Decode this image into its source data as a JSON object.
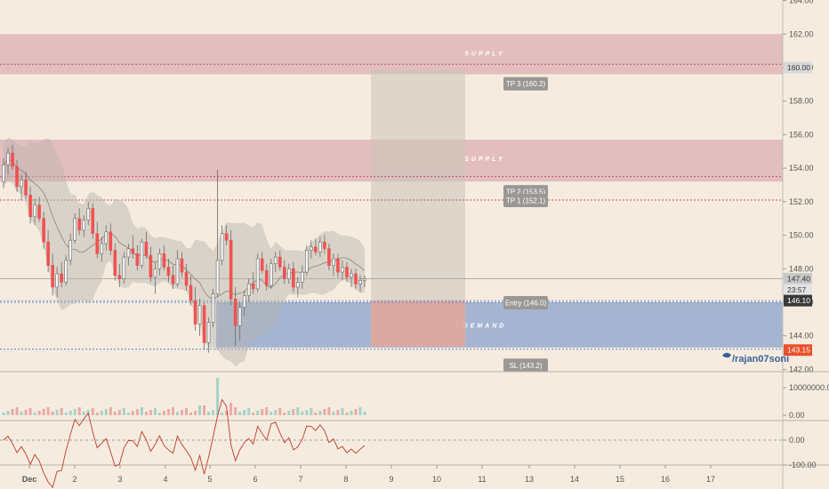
{
  "chart_data": {
    "type": "candlestick",
    "y_axis": {
      "range": [
        141.5,
        164.0
      ],
      "ticks": [
        "164.00",
        "162.00",
        "160.00",
        "158.00",
        "156.00",
        "154.00",
        "152.00",
        "150.00",
        "148.00",
        "146.00",
        "144.00",
        "142.00"
      ]
    },
    "x_axis": {
      "ticks": [
        "Dec",
        "2",
        "3",
        "4",
        "5",
        "6",
        "7",
        "8",
        "9",
        "10",
        "11",
        "13",
        "14",
        "15",
        "16",
        "17"
      ]
    },
    "zones": [
      {
        "name": "supply-zone-upper",
        "label": "SUPPLY",
        "from": 159.6,
        "to": 162.0,
        "color": "#d9a6ae"
      },
      {
        "name": "supply-zone-lower",
        "label": "SUPPLY",
        "from": 153.2,
        "to": 155.7,
        "color": "#d9a6ae"
      },
      {
        "name": "demand-zone",
        "label": "DEMAND",
        "from": 143.3,
        "to": 146.0,
        "color": "#8aa3cc"
      }
    ],
    "levels": [
      {
        "name": "tp3-level",
        "label": "TP 3 (160.2)",
        "value": 160.2,
        "color": "#c0506a"
      },
      {
        "name": "tp2-level",
        "label": "TP 2 (153.5)",
        "value": 153.5,
        "color": "#c0506a"
      },
      {
        "name": "tp1-level",
        "label": "TP 1 (152.1)",
        "value": 152.1,
        "color": "#c0506a"
      },
      {
        "name": "entry-level",
        "label": "Entry (146.0)",
        "value": 146.0,
        "color": "#5b7fc7"
      },
      {
        "name": "sl-level",
        "label": "SL (143.2)",
        "value": 143.2,
        "color": "#5b7fc7"
      }
    ],
    "price_badges": [
      {
        "name": "badge-tp3",
        "text": "160.00",
        "value": 160.0,
        "bg": "#d8d8d8",
        "fg": "#333333"
      },
      {
        "name": "badge-last",
        "text": "147.40",
        "value": 147.4,
        "bg": "#c8c8c8",
        "fg": "#333333"
      },
      {
        "name": "badge-timer",
        "text": "23:57",
        "value": 146.75,
        "bg": "#e3e3e3",
        "fg": "#333333"
      },
      {
        "name": "badge-entry",
        "text": "146.10",
        "value": 146.1,
        "bg": "#3a3a3a",
        "fg": "#ffffff"
      },
      {
        "name": "badge-sl",
        "text": "143.15",
        "value": 143.15,
        "bg": "#e8502a",
        "fg": "#ffffff"
      }
    ],
    "volume_axis": {
      "ticks": [
        "10000000.00",
        "0.00"
      ]
    },
    "oscillator_axis": {
      "ticks": [
        "0.00",
        "-100.00"
      ]
    },
    "watermark": "/rajan07soni",
    "ohlc": [
      [
        153.2,
        154.6,
        152.8,
        154.2
      ],
      [
        154.2,
        155.2,
        153.6,
        154.9
      ],
      [
        154.9,
        155.4,
        153.9,
        154.1
      ],
      [
        154.1,
        154.5,
        152.6,
        152.9
      ],
      [
        152.9,
        153.6,
        152.1,
        153.3
      ],
      [
        153.3,
        153.8,
        152.2,
        152.4
      ],
      [
        152.4,
        152.9,
        150.7,
        151.1
      ],
      [
        151.1,
        152.2,
        150.6,
        151.8
      ],
      [
        151.8,
        152.3,
        150.8,
        151.0
      ],
      [
        151.0,
        151.4,
        149.2,
        149.6
      ],
      [
        149.6,
        150.3,
        147.8,
        148.2
      ],
      [
        148.2,
        148.9,
        146.4,
        146.9
      ],
      [
        146.9,
        148.1,
        146.3,
        147.7
      ],
      [
        147.7,
        148.4,
        146.9,
        147.2
      ],
      [
        147.2,
        148.8,
        147.0,
        148.5
      ],
      [
        148.5,
        150.1,
        148.2,
        149.7
      ],
      [
        149.7,
        151.3,
        149.5,
        151.0
      ],
      [
        151.0,
        151.6,
        150.0,
        150.3
      ],
      [
        150.3,
        151.2,
        149.9,
        150.9
      ],
      [
        150.9,
        152.0,
        150.6,
        151.6
      ],
      [
        151.6,
        151.9,
        149.8,
        150.1
      ],
      [
        150.1,
        150.8,
        148.6,
        148.9
      ],
      [
        148.9,
        149.9,
        148.4,
        149.5
      ],
      [
        149.5,
        150.6,
        149.1,
        150.2
      ],
      [
        150.2,
        150.7,
        148.8,
        149.1
      ],
      [
        149.1,
        149.5,
        147.3,
        147.6
      ],
      [
        147.6,
        148.3,
        146.9,
        147.4
      ],
      [
        147.4,
        149.0,
        147.1,
        148.7
      ],
      [
        148.7,
        149.5,
        148.2,
        149.2
      ],
      [
        149.2,
        150.0,
        148.6,
        148.9
      ],
      [
        148.9,
        149.4,
        147.9,
        148.2
      ],
      [
        148.2,
        149.8,
        148.0,
        149.6
      ],
      [
        149.6,
        150.2,
        148.6,
        148.8
      ],
      [
        148.8,
        149.3,
        147.2,
        147.5
      ],
      [
        147.5,
        148.4,
        146.5,
        148.0
      ],
      [
        148.0,
        149.2,
        147.6,
        148.9
      ],
      [
        148.9,
        149.4,
        147.9,
        148.1
      ],
      [
        148.1,
        148.6,
        147.2,
        147.6
      ],
      [
        147.6,
        148.2,
        146.8,
        147.1
      ],
      [
        147.1,
        149.1,
        146.9,
        148.6
      ],
      [
        148.6,
        149.0,
        147.5,
        147.8
      ],
      [
        147.8,
        148.3,
        146.7,
        147.0
      ],
      [
        147.0,
        147.6,
        145.8,
        146.1
      ],
      [
        146.1,
        146.9,
        144.3,
        144.7
      ],
      [
        144.7,
        146.2,
        144.0,
        145.8
      ],
      [
        145.8,
        146.0,
        143.2,
        143.6
      ],
      [
        143.6,
        145.1,
        143.0,
        144.8
      ],
      [
        144.8,
        146.8,
        144.5,
        146.5
      ],
      [
        146.5,
        153.9,
        146.3,
        148.5
      ],
      [
        148.5,
        150.6,
        148.2,
        150.1
      ],
      [
        150.1,
        150.6,
        149.4,
        149.7
      ],
      [
        149.7,
        150.3,
        145.8,
        146.2
      ],
      [
        146.2,
        146.9,
        143.4,
        144.6
      ],
      [
        144.6,
        146.0,
        143.7,
        145.7
      ],
      [
        145.7,
        146.7,
        145.2,
        146.4
      ],
      [
        146.4,
        147.4,
        146.0,
        147.1
      ],
      [
        147.1,
        147.8,
        146.5,
        146.8
      ],
      [
        146.8,
        148.9,
        146.6,
        148.6
      ],
      [
        148.6,
        149.0,
        147.7,
        147.9
      ],
      [
        147.9,
        148.3,
        146.7,
        147.0
      ],
      [
        147.0,
        148.6,
        146.8,
        148.3
      ],
      [
        148.3,
        149.0,
        147.8,
        148.7
      ],
      [
        148.7,
        149.1,
        147.9,
        148.1
      ],
      [
        148.1,
        148.5,
        147.1,
        147.4
      ],
      [
        147.4,
        148.3,
        147.1,
        148.0
      ],
      [
        148.0,
        148.4,
        146.6,
        146.9
      ],
      [
        146.9,
        147.5,
        146.3,
        147.2
      ],
      [
        147.2,
        148.2,
        146.8,
        147.8
      ],
      [
        147.8,
        149.4,
        147.6,
        149.1
      ],
      [
        149.1,
        149.7,
        148.6,
        149.3
      ],
      [
        149.3,
        149.8,
        148.8,
        149.0
      ],
      [
        149.0,
        149.9,
        148.7,
        149.6
      ],
      [
        149.6,
        150.0,
        148.9,
        149.2
      ],
      [
        149.2,
        149.5,
        147.9,
        148.2
      ],
      [
        148.2,
        148.9,
        147.6,
        148.6
      ],
      [
        148.6,
        148.9,
        147.5,
        147.8
      ],
      [
        147.8,
        148.5,
        147.3,
        148.1
      ],
      [
        148.1,
        148.4,
        147.2,
        147.5
      ],
      [
        147.5,
        148.0,
        146.9,
        147.7
      ],
      [
        147.7,
        148.0,
        146.8,
        147.1
      ],
      [
        147.1,
        147.6,
        146.6,
        147.3
      ],
      [
        147.3,
        147.6,
        146.9,
        147.4
      ]
    ]
  }
}
